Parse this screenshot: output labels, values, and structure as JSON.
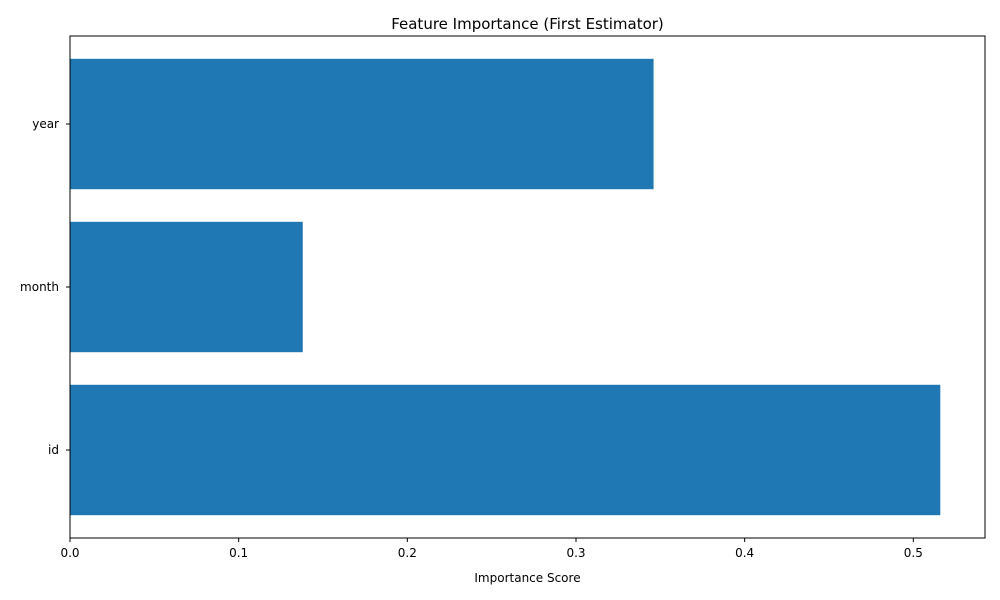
{
  "chart_data": {
    "type": "bar",
    "orientation": "horizontal",
    "title": "Feature Importance (First Estimator)",
    "xlabel": "Importance Score",
    "ylabel": "",
    "categories": [
      "id",
      "month",
      "year"
    ],
    "values": [
      0.516,
      0.138,
      0.346
    ],
    "xlim": [
      0,
      0.5425
    ],
    "xticks": [
      0.0,
      0.1,
      0.2,
      0.3,
      0.4,
      0.5
    ],
    "xtick_labels": [
      "0.0",
      "0.1",
      "0.2",
      "0.3",
      "0.4",
      "0.5"
    ],
    "grid": false,
    "legend": "none",
    "bar_color": "#1f77b4"
  }
}
